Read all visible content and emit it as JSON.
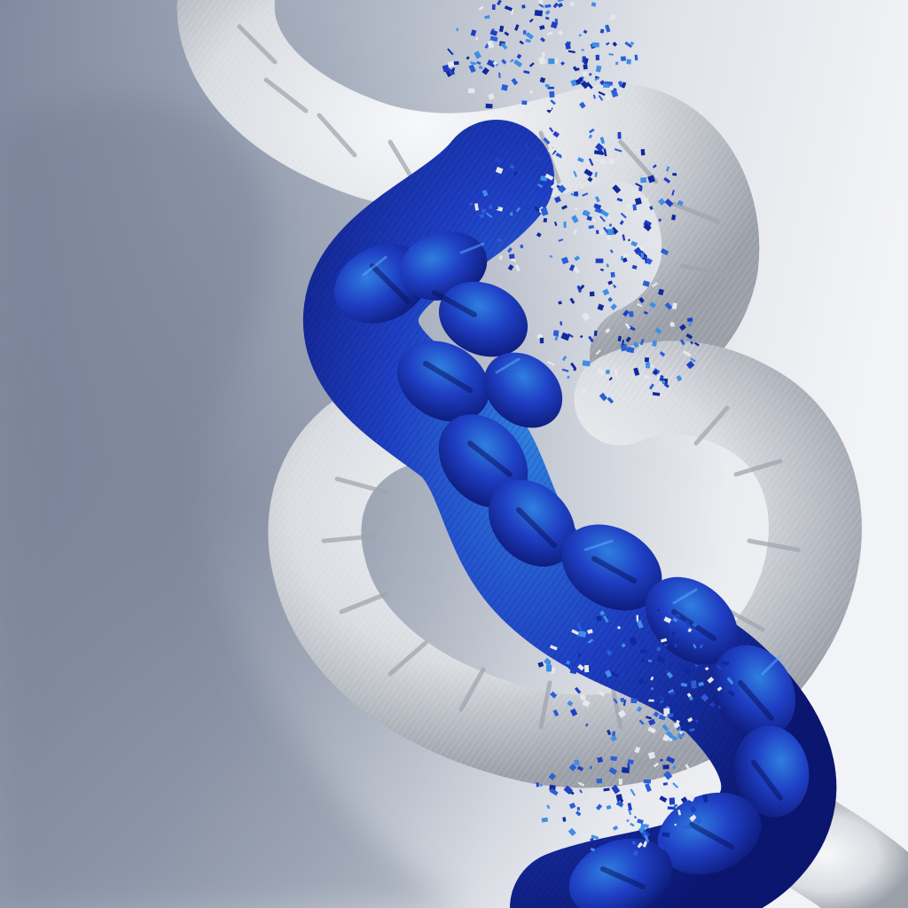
{
  "scene": {
    "subject": "braided-rope",
    "palette": {
      "background_light": "#eef0f4",
      "background_shadow": "#8d97a9",
      "rope_white": "#e9ebee",
      "rope_white_shade": "#a9adb5",
      "rope_blue": "#1f3fc4",
      "rope_blue_dark": "#0c1c7a",
      "rope_blue_highlight": "#2e86e0",
      "fleck_magenta": "#b03fa0"
    }
  }
}
